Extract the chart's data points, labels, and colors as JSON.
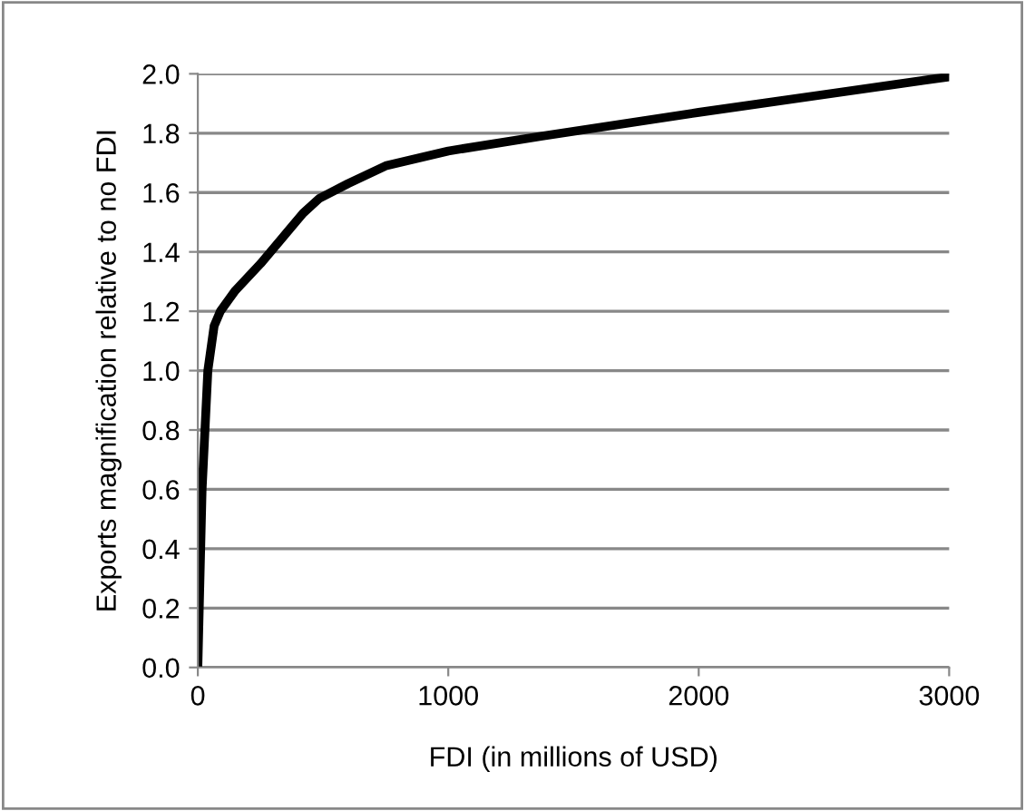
{
  "chart_data": {
    "type": "line",
    "xlabel": "FDI (in millions of USD)",
    "ylabel": "Exports magnification relative to no FDI",
    "series": [
      {
        "color": "#000000",
        "x": [
          0,
          17,
          40,
          65,
          90,
          150,
          250,
          340,
          420,
          485,
          600,
          750,
          1000,
          1375,
          2000,
          2500,
          3000
        ],
        "values": [
          0,
          0.6,
          1.0,
          1.15,
          1.2,
          1.27,
          1.36,
          1.45,
          1.53,
          1.58,
          1.63,
          1.69,
          1.74,
          1.79,
          1.87,
          1.93,
          1.99
        ]
      }
    ],
    "xlim": [
      0,
      3000
    ],
    "xticks": [
      0,
      1000,
      2000,
      3000
    ],
    "ylim": [
      0,
      2.0
    ],
    "yticks": [
      {
        "value": 0,
        "label": "0.0"
      },
      {
        "value": 0.2,
        "label": "0.2"
      },
      {
        "value": 0.4,
        "label": "0.4"
      },
      {
        "value": 0.6,
        "label": "0.6"
      },
      {
        "value": 0.8,
        "label": "0.8"
      },
      {
        "value": 1.0,
        "label": "1.0"
      },
      {
        "value": 1.2,
        "label": "1.2"
      },
      {
        "value": 1.4,
        "label": "1.4"
      },
      {
        "value": 1.6,
        "label": "1.6"
      },
      {
        "value": 1.8,
        "label": "1.8"
      },
      {
        "value": 2.0,
        "label": "2.0"
      }
    ],
    "grid": "y",
    "legend": false,
    "marker": "none",
    "line_style": "solid"
  }
}
